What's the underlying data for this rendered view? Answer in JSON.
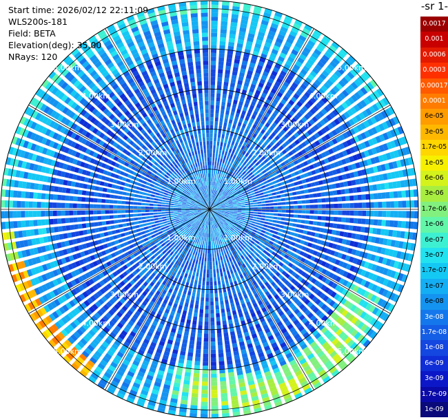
{
  "header": {
    "start_time": "Start time: 2026/02/12 22:11:09",
    "instrument": "WLS200s-181",
    "field": "Field: BETA",
    "elevation": "Elevation(deg): 35.00",
    "nrays": "NRays: 120"
  },
  "colorbar": {
    "title": "-1 sr-",
    "ticks": [
      "0.0017",
      "0.001",
      "0.0006",
      "0.0003",
      "0.00017",
      "0.0001",
      "6e-05",
      "3e-05",
      "1.7e-05",
      "1e-05",
      "6e-06",
      "3e-06",
      "1.7e-06",
      "1e-06",
      "6e-07",
      "3e-07",
      "1.7e-07",
      "1e-07",
      "6e-08",
      "3e-08",
      "1.7e-08",
      "1e-08",
      "6e-09",
      "3e-09",
      "1.7e-09",
      "1e-09"
    ],
    "colors": [
      "#9b0000",
      "#c80000",
      "#e31a00",
      "#ff3000",
      "#ff5a00",
      "#ff7c00",
      "#ff9c00",
      "#ffb800",
      "#ffd600",
      "#f6f000",
      "#d4f21c",
      "#a8ee40",
      "#82f07e",
      "#62f6a8",
      "#3ef0d2",
      "#22e2f0",
      "#14c8f4",
      "#14aef4",
      "#1494f0",
      "#1478ec",
      "#145ee6",
      "#1446e0",
      "#102ed6",
      "#0c18c8",
      "#0a0aa8",
      "#0a0a7a"
    ]
  },
  "chart_data": {
    "type": "heatmap",
    "projection": "polar (PPI scan)",
    "elevation_deg": 35.0,
    "n_rays": 120,
    "field": "BETA",
    "range_rings_km": [
      1.0,
      2.0,
      3.0,
      4.0,
      5.0
    ],
    "range_ring_labels": [
      "1.00km",
      "2.00km",
      "3.00km",
      "4.00km",
      "5.00km"
    ],
    "max_range_km": 5.2,
    "value_scale": "log",
    "color_range": [
      1e-09,
      0.0017
    ],
    "regions": [
      {
        "description": "near range",
        "range_km": [
          0,
          1.0
        ],
        "beta": 6e-08
      },
      {
        "description": "inner ring",
        "range_km": [
          1.0,
          2.5
        ],
        "beta": 3e-08
      },
      {
        "description": "mid ring",
        "range_km": [
          2.5,
          4.0
        ],
        "beta": 2e-08
      },
      {
        "description": "outer ring north/west",
        "range_km": [
          4.0,
          5.2
        ],
        "beta": 1e-07
      },
      {
        "description": "south-east band",
        "azimuth_deg": [
          120,
          190
        ],
        "range_km": [
          3.6,
          5.2
        ],
        "beta": 1.5e-06
      },
      {
        "description": "west-southwest edge",
        "azimuth_deg": [
          220,
          250
        ],
        "range_km": [
          4.8,
          5.2
        ],
        "beta": 3e-05
      }
    ]
  }
}
